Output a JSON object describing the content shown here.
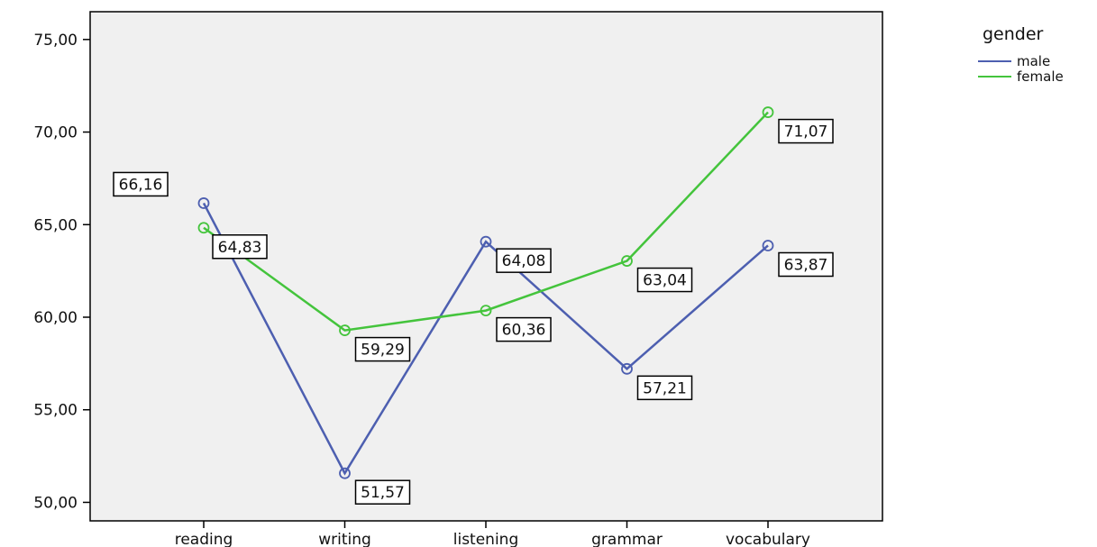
{
  "chart_data": {
    "type": "line",
    "categories": [
      "reading",
      "writing",
      "listening",
      "grammar",
      "vocabulary"
    ],
    "series": [
      {
        "name": "male",
        "color": "#4d5fb0",
        "values": [
          66.16,
          51.57,
          64.08,
          57.21,
          63.87
        ],
        "labels": [
          "66,16",
          "51,57",
          "64,08",
          "57,21",
          "63,87"
        ]
      },
      {
        "name": "female",
        "color": "#44c43c",
        "values": [
          64.83,
          59.29,
          60.36,
          63.04,
          71.07
        ],
        "labels": [
          "64,83",
          "59,29",
          "60,36",
          "63,04",
          "71,07"
        ]
      }
    ],
    "y_ticks": [
      50,
      55,
      60,
      65,
      70,
      75
    ],
    "y_tick_labels": [
      "50,00",
      "55,00",
      "60,00",
      "65,00",
      "70,00",
      "75,00"
    ],
    "ylim": [
      49,
      76.5
    ],
    "plot_background": "#f0f0f0",
    "grid": false,
    "legend": {
      "title": "gender",
      "placement": "top-right outside"
    }
  }
}
